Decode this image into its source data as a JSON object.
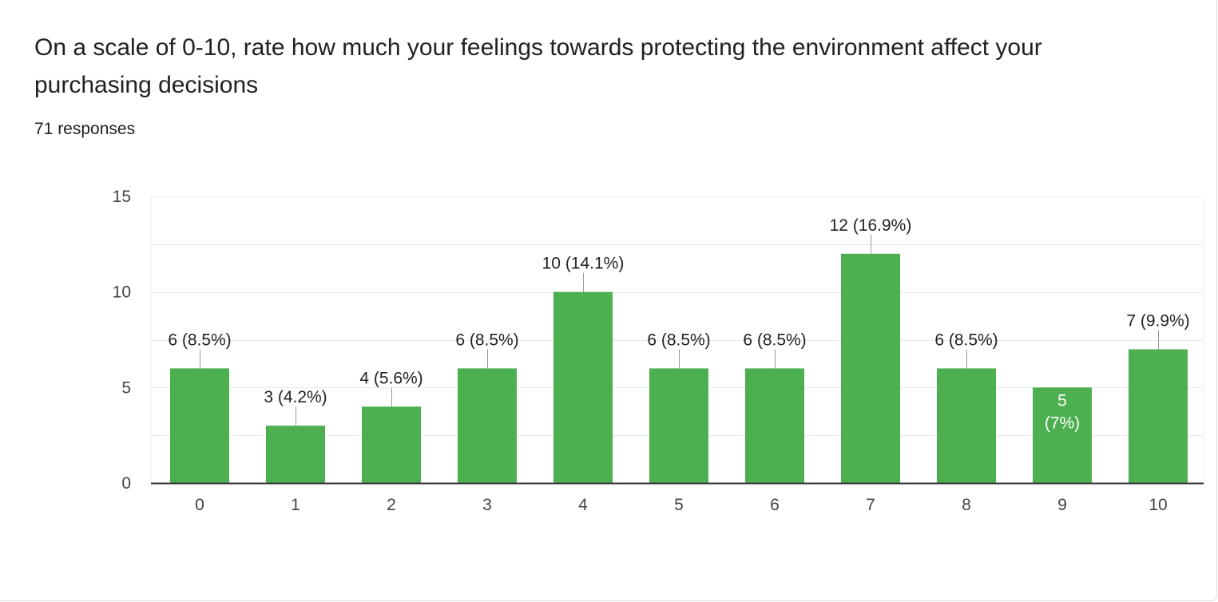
{
  "question": {
    "title": "On a scale of 0-10, rate how much your feelings towards protecting the environment affect your purchasing decisions",
    "responses": "71 responses"
  },
  "colors": {
    "bar": "#4caf50",
    "grid": "#ebebeb",
    "axis": "#333333",
    "leader": "#999999"
  },
  "chart_data": {
    "type": "bar",
    "categories": [
      "0",
      "1",
      "2",
      "3",
      "4",
      "5",
      "6",
      "7",
      "8",
      "9",
      "10"
    ],
    "values": [
      6,
      3,
      4,
      6,
      10,
      6,
      6,
      12,
      6,
      5,
      7
    ],
    "data_labels": [
      "6 (8.5%)",
      "3 (4.2%)",
      "4 (5.6%)",
      "6 (8.5%)",
      "10 (14.1%)",
      "6 (8.5%)",
      "6 (8.5%)",
      "12 (16.9%)",
      "6 (8.5%)",
      "5 (7%)",
      "7 (9.9%)"
    ],
    "ylim": [
      0,
      15
    ],
    "yticks": [
      0,
      5,
      10,
      15
    ],
    "grid": true,
    "title": "",
    "xlabel": "",
    "ylabel": ""
  }
}
